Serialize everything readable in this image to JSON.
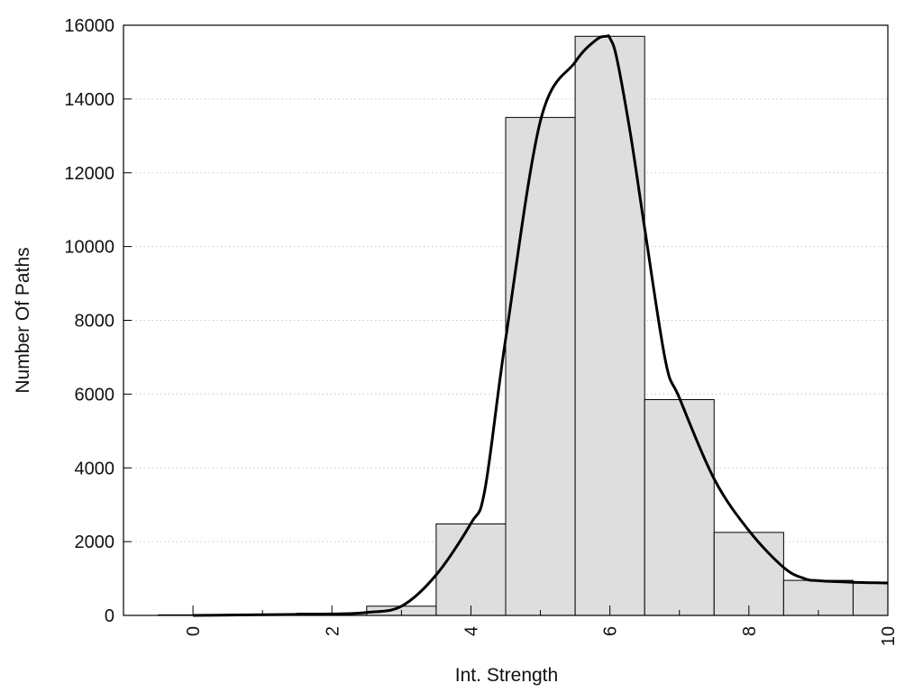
{
  "chart_data": {
    "type": "bar",
    "title": "",
    "xlabel": "Int. Strength",
    "ylabel": "Number Of Paths",
    "xlim": [
      -1,
      10
    ],
    "ylim": [
      0,
      16000
    ],
    "xticks": [
      0,
      2,
      4,
      6,
      8,
      10
    ],
    "yticks": [
      0,
      2000,
      4000,
      6000,
      8000,
      10000,
      12000,
      14000,
      16000
    ],
    "grid": "y-dotted",
    "bins": {
      "x": [
        0,
        1,
        2,
        3,
        4,
        5,
        6,
        7,
        8,
        9,
        10
      ],
      "values": [
        15,
        30,
        60,
        250,
        2480,
        13500,
        15700,
        5850,
        2250,
        950,
        900
      ]
    },
    "curve": {
      "x": [
        0,
        1,
        2,
        2.5,
        3,
        3.5,
        4,
        4.2,
        4.5,
        5,
        5.5,
        5.8,
        5.95,
        6,
        6.1,
        6.3,
        6.5,
        6.8,
        7,
        7.5,
        8,
        8.5,
        8.8,
        9,
        9.5,
        10
      ],
      "y": [
        0,
        20,
        40,
        80,
        250,
        1100,
        2500,
        3400,
        7500,
        13400,
        15000,
        15600,
        15700,
        15650,
        15100,
        13000,
        10500,
        6900,
        5900,
        3700,
        2300,
        1300,
        1000,
        940,
        900,
        880
      ]
    }
  }
}
